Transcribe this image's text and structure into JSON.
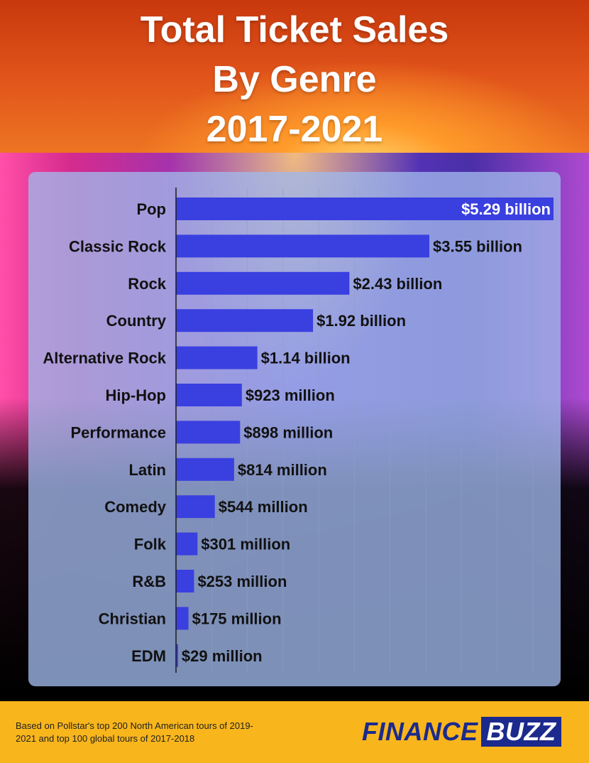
{
  "header": {
    "title_line1": "Total Ticket Sales",
    "title_line2": "By Genre",
    "title_line3": "2017-2021"
  },
  "chart_data": {
    "type": "bar",
    "orientation": "horizontal",
    "title": "Total Ticket Sales By Genre 2017-2021",
    "categories": [
      "Pop",
      "Classic Rock",
      "Rock",
      "Country",
      "Alternative Rock",
      "Hip-Hop",
      "Performance",
      "Latin",
      "Comedy",
      "Folk",
      "R&B",
      "Christian",
      "EDM"
    ],
    "values": [
      5.29,
      3.55,
      2.43,
      1.92,
      1.14,
      0.923,
      0.898,
      0.814,
      0.544,
      0.301,
      0.253,
      0.175,
      0.029
    ],
    "value_unit": "billion USD",
    "value_labels": [
      "$5.29 billion",
      "$3.55 billion",
      "$2.43 billion",
      "$1.92 billion",
      "$1.14 billion",
      "$923 million",
      "$898 million",
      "$814 million",
      "$544 million",
      "$301 million",
      "$253 million",
      "$175 million",
      "$29 million"
    ],
    "xlim": [
      0,
      5.29
    ],
    "grid": true,
    "bar_color": "#3a3fe0"
  },
  "footer": {
    "footnote": "Based on Pollstar's top 200 North American tours of 2019-2021 and top 100 global tours of 2017-2018",
    "logo_part1": "FINANCE",
    "logo_part2": "BUZZ"
  },
  "colors": {
    "footer_bg": "#f8b51c",
    "logo_blue": "#1b2a8c"
  }
}
